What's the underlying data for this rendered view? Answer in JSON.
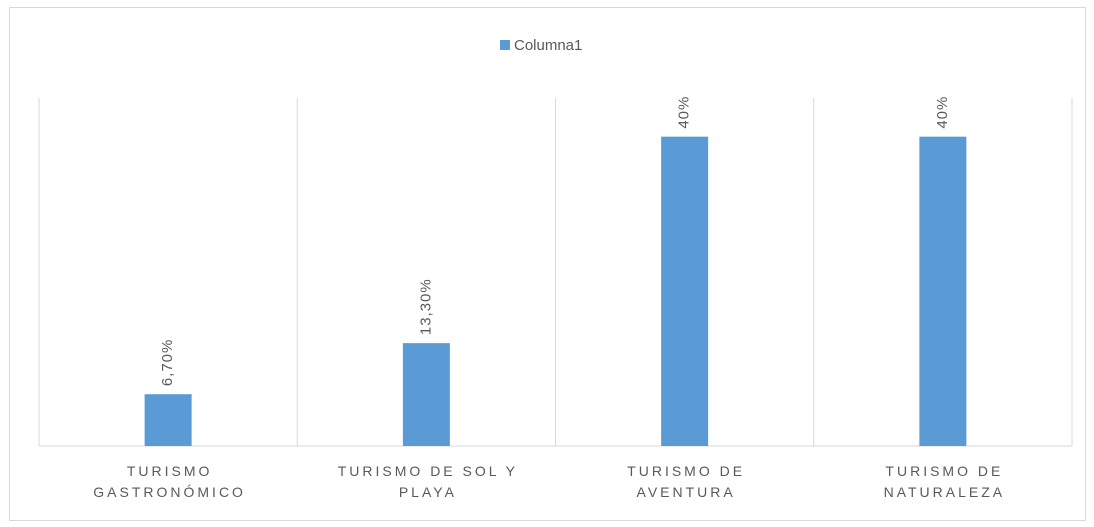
{
  "chart_data": {
    "type": "bar",
    "categories": [
      "TURISMO GASTRONÓMICO",
      "TURISMO DE SOL Y PLAYA",
      "TURISMO DE AVENTURA",
      "TURISMO DE NATURALEZA"
    ],
    "series": [
      {
        "name": "Columna1",
        "color": "#5b9bd5",
        "values": [
          6.7,
          13.3,
          40,
          40
        ],
        "value_labels": [
          "6,70%",
          "13,30%",
          "40%",
          "40%"
        ]
      }
    ],
    "ylim": [
      0,
      45
    ],
    "legend": "top"
  }
}
